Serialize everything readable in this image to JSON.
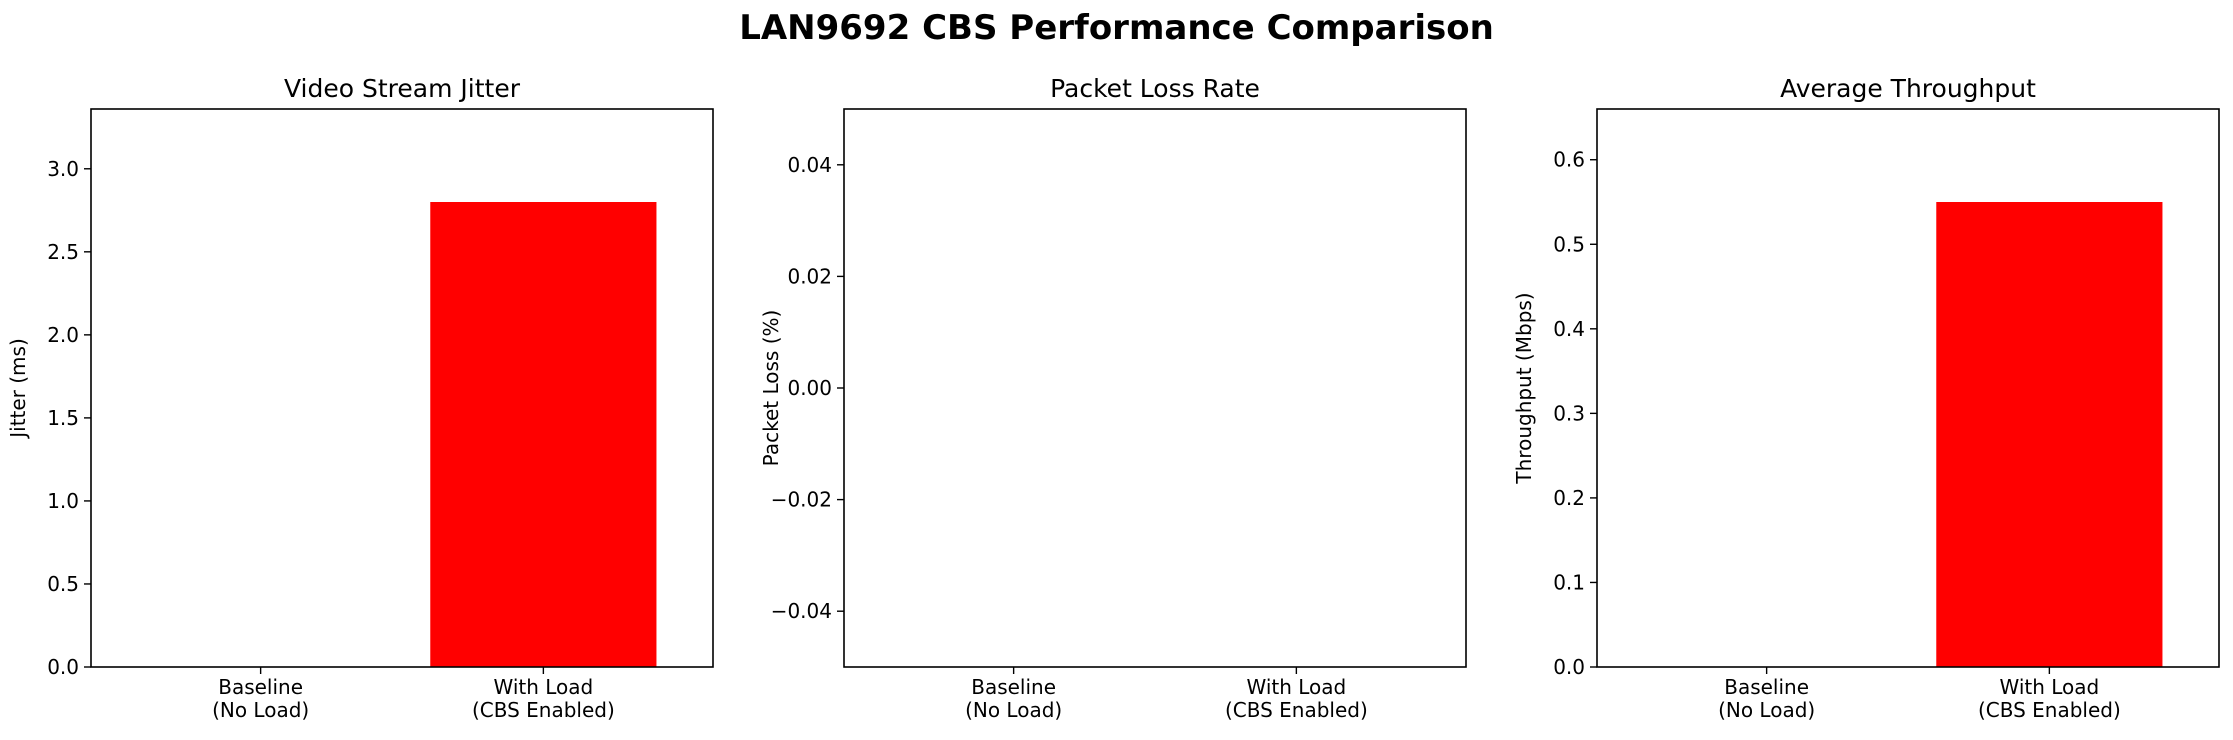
{
  "figure": {
    "title": "LAN9692 CBS Performance Comparison"
  },
  "chart_data": [
    {
      "type": "bar",
      "title": "Video Stream Jitter",
      "xlabel": "",
      "ylabel": "Jitter (ms)",
      "categories": [
        "Baseline\n(No Load)",
        "With Load\n(CBS Enabled)"
      ],
      "values": [
        0,
        2.8
      ],
      "colors": [
        "#00ff00",
        "#ff0000"
      ],
      "ylim": [
        0,
        3.36
      ],
      "yticks": [
        0.0,
        0.5,
        1.0,
        1.5,
        2.0,
        2.5,
        3.0
      ],
      "ytick_labels": [
        "0.0",
        "0.5",
        "1.0",
        "1.5",
        "2.0",
        "2.5",
        "3.0"
      ],
      "grid": false
    },
    {
      "type": "bar",
      "title": "Packet Loss Rate",
      "xlabel": "",
      "ylabel": "Packet Loss (%)",
      "categories": [
        "Baseline\n(No Load)",
        "With Load\n(CBS Enabled)"
      ],
      "values": [
        0,
        0
      ],
      "colors": [
        "#00ff00",
        "#ff0000"
      ],
      "ylim": [
        -0.05,
        0.05
      ],
      "yticks": [
        -0.04,
        -0.02,
        0.0,
        0.02,
        0.04
      ],
      "ytick_labels": [
        "−0.04",
        "−0.02",
        "0.00",
        "0.02",
        "0.04"
      ],
      "grid": false
    },
    {
      "type": "bar",
      "title": "Average Throughput",
      "xlabel": "",
      "ylabel": "Throughput (Mbps)",
      "categories": [
        "Baseline\n(No Load)",
        "With Load\n(CBS Enabled)"
      ],
      "values": [
        0,
        0.55
      ],
      "colors": [
        "#00ff00",
        "#ff0000"
      ],
      "ylim": [
        0,
        0.66
      ],
      "yticks": [
        0.0,
        0.1,
        0.2,
        0.3,
        0.4,
        0.5,
        0.6
      ],
      "ytick_labels": [
        "0.0",
        "0.1",
        "0.2",
        "0.3",
        "0.4",
        "0.5",
        "0.6"
      ],
      "grid": false
    }
  ]
}
